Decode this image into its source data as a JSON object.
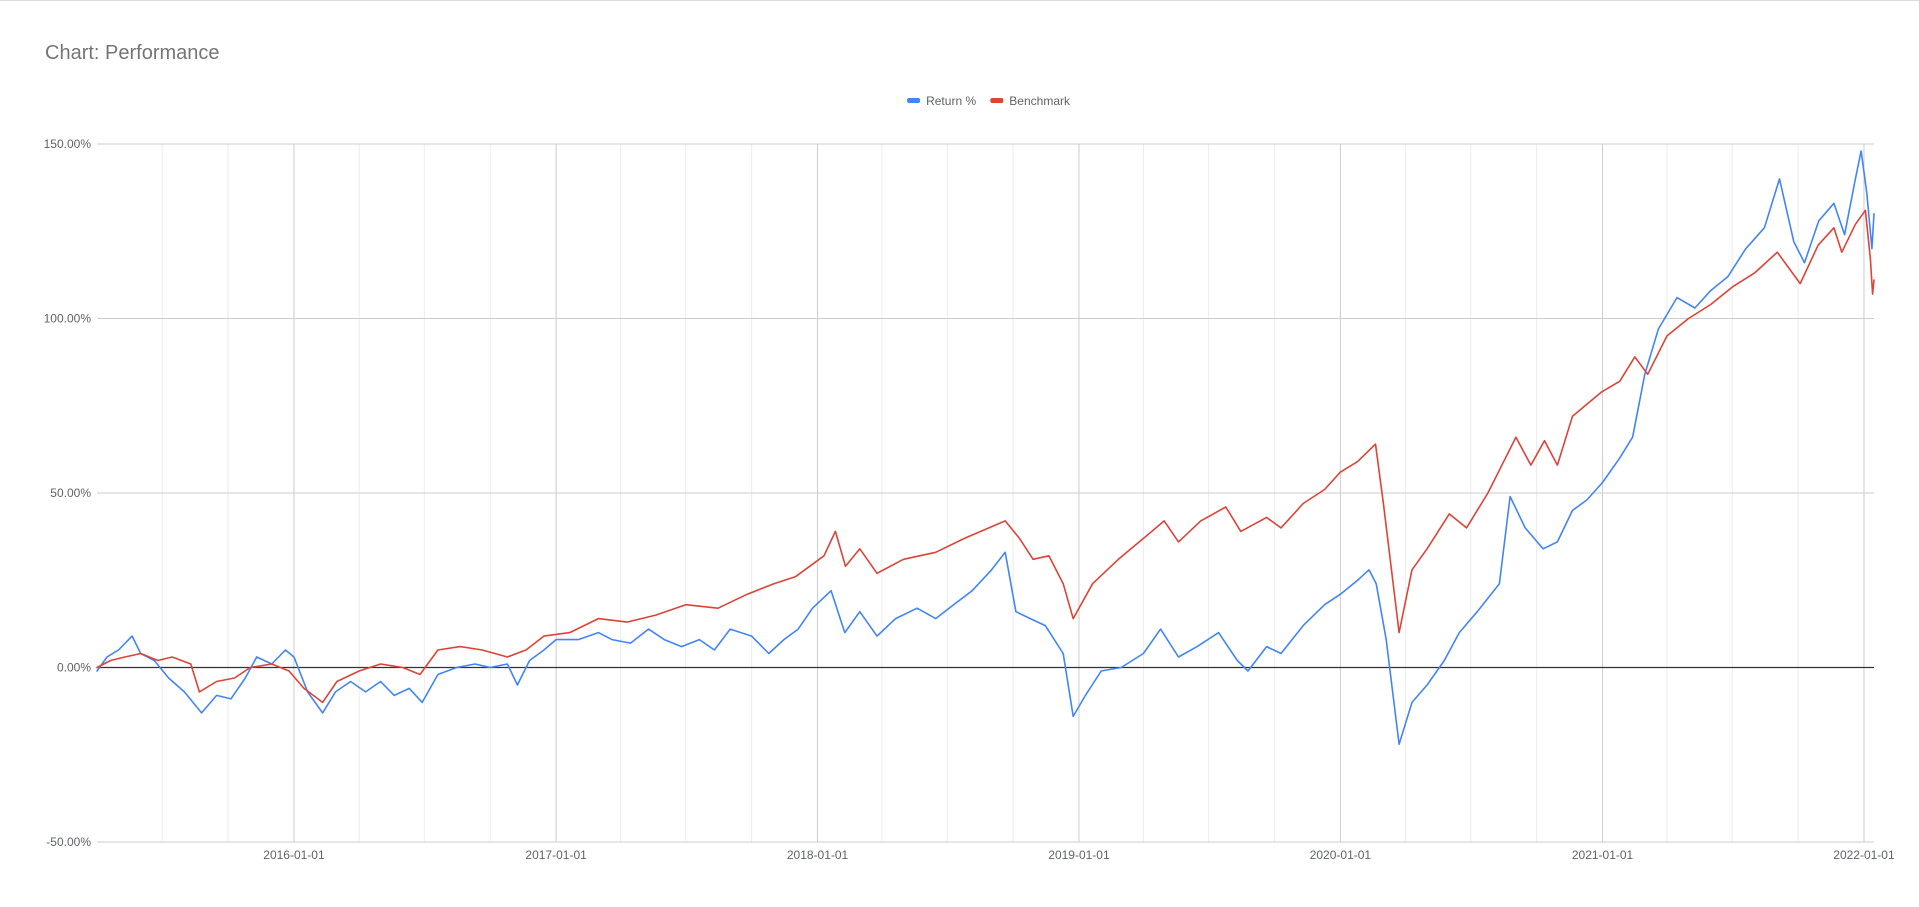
{
  "chart_data": {
    "type": "line",
    "title": "Chart: Performance",
    "xlabel": "",
    "ylabel": "",
    "x_range": [
      "2015-04-01",
      "2022-01-15"
    ],
    "ylim": [
      -50,
      150
    ],
    "y_ticks": [
      -50,
      0,
      50,
      100,
      150
    ],
    "y_tick_labels": [
      "-50.00%",
      "0.00%",
      "50.00%",
      "100.00%",
      "150.00%"
    ],
    "x_ticks": [
      "2016-01-01",
      "2017-01-01",
      "2018-01-01",
      "2019-01-01",
      "2020-01-01",
      "2021-01-01",
      "2022-01-01"
    ],
    "grid": true,
    "legend_position": "top-center",
    "series": [
      {
        "name": "Return %",
        "color": "#4285f4",
        "points": [
          [
            "2015-04-01",
            -1
          ],
          [
            "2015-04-15",
            3
          ],
          [
            "2015-05-01",
            5
          ],
          [
            "2015-05-20",
            9
          ],
          [
            "2015-06-01",
            4
          ],
          [
            "2015-06-20",
            2
          ],
          [
            "2015-07-10",
            -3
          ],
          [
            "2015-08-01",
            -7
          ],
          [
            "2015-08-25",
            -13
          ],
          [
            "2015-09-15",
            -8
          ],
          [
            "2015-10-05",
            -9
          ],
          [
            "2015-10-25",
            -3
          ],
          [
            "2015-11-10",
            3
          ],
          [
            "2015-12-01",
            1
          ],
          [
            "2015-12-20",
            5
          ],
          [
            "2016-01-01",
            3
          ],
          [
            "2016-01-20",
            -7
          ],
          [
            "2016-02-10",
            -13
          ],
          [
            "2016-02-28",
            -7
          ],
          [
            "2016-03-20",
            -4
          ],
          [
            "2016-04-10",
            -7
          ],
          [
            "2016-05-01",
            -4
          ],
          [
            "2016-05-20",
            -8
          ],
          [
            "2016-06-10",
            -6
          ],
          [
            "2016-06-28",
            -10
          ],
          [
            "2016-07-20",
            -2
          ],
          [
            "2016-08-15",
            0
          ],
          [
            "2016-09-10",
            1
          ],
          [
            "2016-10-01",
            0
          ],
          [
            "2016-10-25",
            1
          ],
          [
            "2016-11-08",
            -5
          ],
          [
            "2016-11-25",
            2
          ],
          [
            "2016-12-15",
            5
          ],
          [
            "2017-01-01",
            8
          ],
          [
            "2017-02-01",
            8
          ],
          [
            "2017-03-01",
            10
          ],
          [
            "2017-03-20",
            8
          ],
          [
            "2017-04-15",
            7
          ],
          [
            "2017-05-10",
            11
          ],
          [
            "2017-06-01",
            8
          ],
          [
            "2017-06-25",
            6
          ],
          [
            "2017-07-20",
            8
          ],
          [
            "2017-08-10",
            5
          ],
          [
            "2017-09-01",
            11
          ],
          [
            "2017-10-01",
            9
          ],
          [
            "2017-10-25",
            4
          ],
          [
            "2017-11-15",
            8
          ],
          [
            "2017-12-05",
            11
          ],
          [
            "2017-12-25",
            17
          ],
          [
            "2018-01-20",
            22
          ],
          [
            "2018-02-08",
            10
          ],
          [
            "2018-03-01",
            16
          ],
          [
            "2018-03-25",
            9
          ],
          [
            "2018-04-20",
            14
          ],
          [
            "2018-05-20",
            17
          ],
          [
            "2018-06-15",
            14
          ],
          [
            "2018-07-10",
            18
          ],
          [
            "2018-08-05",
            22
          ],
          [
            "2018-09-01",
            28
          ],
          [
            "2018-09-20",
            33
          ],
          [
            "2018-10-05",
            16
          ],
          [
            "2018-10-25",
            14
          ],
          [
            "2018-11-15",
            12
          ],
          [
            "2018-12-10",
            4
          ],
          [
            "2018-12-24",
            -14
          ],
          [
            "2019-01-10",
            -8
          ],
          [
            "2019-02-01",
            -1
          ],
          [
            "2019-03-01",
            0
          ],
          [
            "2019-04-01",
            4
          ],
          [
            "2019-04-25",
            11
          ],
          [
            "2019-05-20",
            3
          ],
          [
            "2019-06-15",
            6
          ],
          [
            "2019-07-15",
            10
          ],
          [
            "2019-08-10",
            2
          ],
          [
            "2019-08-25",
            -1
          ],
          [
            "2019-09-20",
            6
          ],
          [
            "2019-10-10",
            4
          ],
          [
            "2019-11-10",
            12
          ],
          [
            "2019-12-10",
            18
          ],
          [
            "2020-01-01",
            21
          ],
          [
            "2020-01-25",
            25
          ],
          [
            "2020-02-10",
            28
          ],
          [
            "2020-02-20",
            24
          ],
          [
            "2020-03-05",
            8
          ],
          [
            "2020-03-23",
            -22
          ],
          [
            "2020-04-10",
            -10
          ],
          [
            "2020-05-01",
            -5
          ],
          [
            "2020-05-25",
            2
          ],
          [
            "2020-06-15",
            10
          ],
          [
            "2020-07-10",
            16
          ],
          [
            "2020-08-10",
            24
          ],
          [
            "2020-08-25",
            49
          ],
          [
            "2020-09-15",
            40
          ],
          [
            "2020-10-10",
            34
          ],
          [
            "2020-10-30",
            36
          ],
          [
            "2020-11-20",
            45
          ],
          [
            "2020-12-10",
            48
          ],
          [
            "2021-01-01",
            53
          ],
          [
            "2021-01-25",
            60
          ],
          [
            "2021-02-12",
            66
          ],
          [
            "2021-03-01",
            84
          ],
          [
            "2021-03-20",
            97
          ],
          [
            "2021-04-15",
            106
          ],
          [
            "2021-05-10",
            103
          ],
          [
            "2021-06-01",
            108
          ],
          [
            "2021-06-25",
            112
          ],
          [
            "2021-07-20",
            120
          ],
          [
            "2021-08-15",
            126
          ],
          [
            "2021-09-05",
            140
          ],
          [
            "2021-09-25",
            122
          ],
          [
            "2021-10-10",
            116
          ],
          [
            "2021-10-30",
            128
          ],
          [
            "2021-11-20",
            133
          ],
          [
            "2021-12-05",
            124
          ],
          [
            "2021-12-20",
            140
          ],
          [
            "2021-12-28",
            148
          ],
          [
            "2022-01-05",
            136
          ],
          [
            "2022-01-12",
            120
          ],
          [
            "2022-01-15",
            130
          ]
        ]
      },
      {
        "name": "Benchmark",
        "color": "#db4437",
        "points": [
          [
            "2015-04-01",
            0
          ],
          [
            "2015-04-20",
            2
          ],
          [
            "2015-05-10",
            3
          ],
          [
            "2015-06-01",
            4
          ],
          [
            "2015-06-25",
            2
          ],
          [
            "2015-07-15",
            3
          ],
          [
            "2015-08-10",
            1
          ],
          [
            "2015-08-22",
            -7
          ],
          [
            "2015-09-15",
            -4
          ],
          [
            "2015-10-10",
            -3
          ],
          [
            "2015-11-01",
            0
          ],
          [
            "2015-12-01",
            1
          ],
          [
            "2015-12-25",
            -1
          ],
          [
            "2016-01-15",
            -6
          ],
          [
            "2016-02-10",
            -10
          ],
          [
            "2016-03-01",
            -4
          ],
          [
            "2016-04-01",
            -1
          ],
          [
            "2016-05-01",
            1
          ],
          [
            "2016-06-01",
            0
          ],
          [
            "2016-06-25",
            -2
          ],
          [
            "2016-07-20",
            5
          ],
          [
            "2016-08-20",
            6
          ],
          [
            "2016-09-20",
            5
          ],
          [
            "2016-10-25",
            3
          ],
          [
            "2016-11-20",
            5
          ],
          [
            "2016-12-15",
            9
          ],
          [
            "2017-01-20",
            10
          ],
          [
            "2017-03-01",
            14
          ],
          [
            "2017-04-10",
            13
          ],
          [
            "2017-05-20",
            15
          ],
          [
            "2017-07-01",
            18
          ],
          [
            "2017-08-15",
            17
          ],
          [
            "2017-09-25",
            21
          ],
          [
            "2017-11-01",
            24
          ],
          [
            "2017-12-01",
            26
          ],
          [
            "2018-01-10",
            32
          ],
          [
            "2018-01-26",
            39
          ],
          [
            "2018-02-09",
            29
          ],
          [
            "2018-03-01",
            34
          ],
          [
            "2018-03-25",
            27
          ],
          [
            "2018-05-01",
            31
          ],
          [
            "2018-06-15",
            33
          ],
          [
            "2018-07-25",
            37
          ],
          [
            "2018-09-20",
            42
          ],
          [
            "2018-10-10",
            37
          ],
          [
            "2018-10-29",
            31
          ],
          [
            "2018-11-20",
            32
          ],
          [
            "2018-12-10",
            24
          ],
          [
            "2018-12-24",
            14
          ],
          [
            "2019-01-20",
            24
          ],
          [
            "2019-02-25",
            31
          ],
          [
            "2019-04-01",
            37
          ],
          [
            "2019-04-30",
            42
          ],
          [
            "2019-05-20",
            36
          ],
          [
            "2019-06-20",
            42
          ],
          [
            "2019-07-25",
            46
          ],
          [
            "2019-08-15",
            39
          ],
          [
            "2019-09-20",
            43
          ],
          [
            "2019-10-10",
            40
          ],
          [
            "2019-11-10",
            47
          ],
          [
            "2019-12-10",
            51
          ],
          [
            "2020-01-01",
            56
          ],
          [
            "2020-01-25",
            59
          ],
          [
            "2020-02-19",
            64
          ],
          [
            "2020-03-01",
            47
          ],
          [
            "2020-03-23",
            10
          ],
          [
            "2020-04-10",
            28
          ],
          [
            "2020-05-01",
            34
          ],
          [
            "2020-06-01",
            44
          ],
          [
            "2020-06-25",
            40
          ],
          [
            "2020-07-25",
            50
          ],
          [
            "2020-09-02",
            66
          ],
          [
            "2020-09-23",
            58
          ],
          [
            "2020-10-12",
            65
          ],
          [
            "2020-10-30",
            58
          ],
          [
            "2020-11-20",
            72
          ],
          [
            "2020-12-31",
            79
          ],
          [
            "2021-01-25",
            82
          ],
          [
            "2021-02-15",
            89
          ],
          [
            "2021-03-05",
            84
          ],
          [
            "2021-04-01",
            95
          ],
          [
            "2021-05-01",
            100
          ],
          [
            "2021-06-01",
            104
          ],
          [
            "2021-07-01",
            109
          ],
          [
            "2021-08-01",
            113
          ],
          [
            "2021-09-02",
            119
          ],
          [
            "2021-10-04",
            110
          ],
          [
            "2021-10-29",
            121
          ],
          [
            "2021-11-20",
            126
          ],
          [
            "2021-12-01",
            119
          ],
          [
            "2021-12-20",
            127
          ],
          [
            "2022-01-03",
            131
          ],
          [
            "2022-01-10",
            117
          ],
          [
            "2022-01-13",
            107
          ],
          [
            "2022-01-15",
            111
          ]
        ]
      }
    ]
  }
}
